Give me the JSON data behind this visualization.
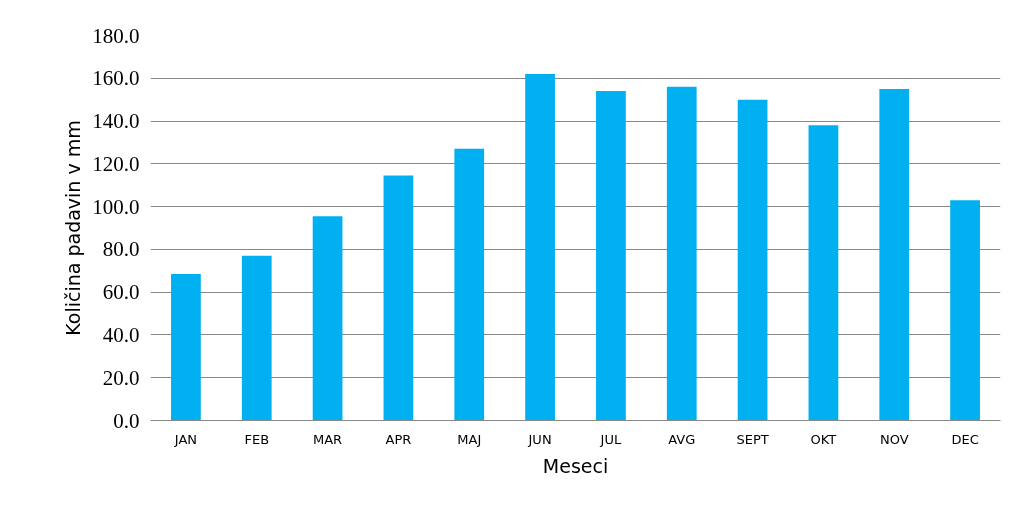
{
  "chart_data": {
    "type": "bar",
    "xlabel": "Meseci",
    "ylabel": "Količina padavin v mm",
    "categories": [
      "JAN",
      "FEB",
      "MAR",
      "APR",
      "MAJ",
      "JUN",
      "JUL",
      "AVG",
      "SEPT",
      "OKT",
      "NOV",
      "DEC"
    ],
    "values": [
      68.5,
      77,
      95.5,
      114.5,
      127,
      162,
      154,
      156,
      150,
      138,
      155,
      103
    ],
    "color": "#00b0f0",
    "ylim": [
      0,
      180
    ],
    "yticks": [
      {
        "value": 0,
        "label": "0.0"
      },
      {
        "value": 20,
        "label": "20.0"
      },
      {
        "value": 40,
        "label": "40.0"
      },
      {
        "value": 60,
        "label": "60.0"
      },
      {
        "value": 80,
        "label": "80.0"
      },
      {
        "value": 100,
        "label": "100.0"
      },
      {
        "value": 120,
        "label": "120.0"
      },
      {
        "value": 140,
        "label": "140.0"
      },
      {
        "value": 160,
        "label": "160.0"
      },
      {
        "value": 180,
        "label": "180.0"
      }
    ],
    "grid": "y"
  }
}
